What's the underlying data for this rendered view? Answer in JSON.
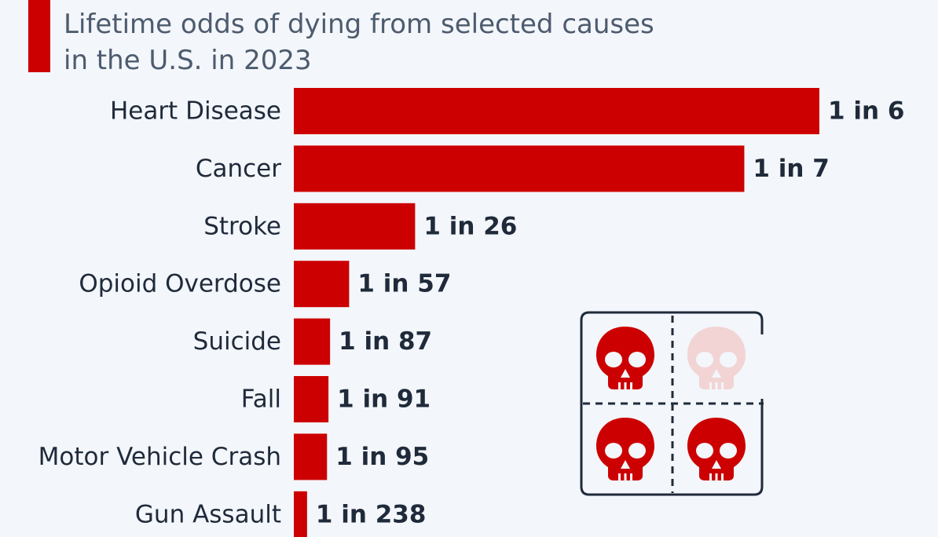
{
  "title_lines": [
    "Lifetime odds of dying from selected causes",
    "in the U.S. in 2023"
  ],
  "colors": {
    "accent": "#cc0000",
    "bar": "#cc0000",
    "skull": "#cc0000",
    "skull_faded": "#f2d4d4",
    "text": "#1f2a3a",
    "title": "#4d5b6e",
    "frame": "#1f2a3a",
    "background": "#f3f6fa"
  },
  "icon": {
    "name": "skull-grid-icon",
    "faded_quadrant": "top-right"
  },
  "chart_data": {
    "type": "bar",
    "orientation": "horizontal",
    "title": "Lifetime odds of dying from selected causes in the U.S. in 2023",
    "categories": [
      "Heart Disease",
      "Cancer",
      "Stroke",
      "Opioid Overdose",
      "Suicide",
      "Fall",
      "Motor Vehicle Crash",
      "Gun Assault"
    ],
    "odds_denominator": [
      6,
      7,
      26,
      57,
      87,
      91,
      95,
      238
    ],
    "data_labels": [
      "1 in 6",
      "1 in 7",
      "1 in 26",
      "1 in 57",
      "1 in 87",
      "1 in 91",
      "1 in 95",
      "1 in 238"
    ],
    "bar_value": "probability = 1 / odds_denominator",
    "grid": false,
    "legend": "none"
  }
}
